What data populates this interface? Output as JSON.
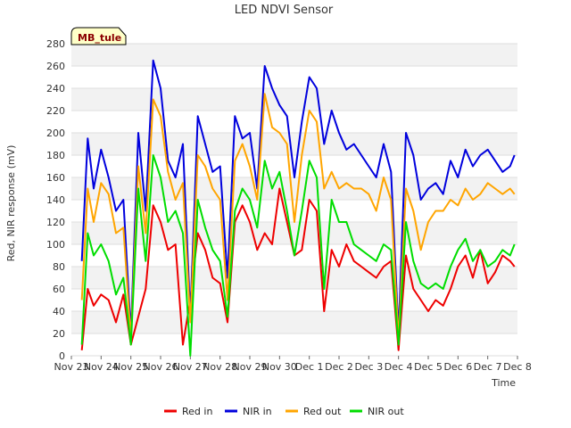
{
  "chart_data": {
    "type": "line",
    "title": "LED NDVI Sensor",
    "site_label": "MB_tule",
    "xlabel": "Time",
    "ylabel": "Red, NIR response (mV)",
    "ylim": [
      0,
      280
    ],
    "yticks": [
      0,
      20,
      40,
      60,
      80,
      100,
      120,
      140,
      160,
      180,
      200,
      220,
      240,
      260,
      280
    ],
    "xlim": [
      0,
      15
    ],
    "xticks": [
      {
        "x": 0,
        "label": "Nov 23"
      },
      {
        "x": 1,
        "label": "Nov 24"
      },
      {
        "x": 2,
        "label": "Nov 25"
      },
      {
        "x": 3,
        "label": "Nov 26"
      },
      {
        "x": 4,
        "label": "Nov 27"
      },
      {
        "x": 5,
        "label": "Nov 28"
      },
      {
        "x": 6,
        "label": "Nov 29"
      },
      {
        "x": 7,
        "label": "Nov 30"
      },
      {
        "x": 8,
        "label": "Dec 1"
      },
      {
        "x": 9,
        "label": "Dec 2"
      },
      {
        "x": 10,
        "label": "Dec 3"
      },
      {
        "x": 11,
        "label": "Dec 4"
      },
      {
        "x": 12,
        "label": "Dec 5"
      },
      {
        "x": 13,
        "label": "Dec 6"
      },
      {
        "x": 14,
        "label": "Dec 7"
      },
      {
        "x": 15,
        "label": "Dec 8"
      }
    ],
    "grid": true,
    "legend_position": "bottom",
    "x": [
      0.35,
      0.55,
      0.75,
      1.0,
      1.25,
      1.5,
      1.75,
      2.0,
      2.25,
      2.5,
      2.75,
      3.0,
      3.25,
      3.5,
      3.75,
      4.0,
      4.25,
      4.5,
      4.75,
      5.0,
      5.25,
      5.5,
      5.75,
      6.0,
      6.25,
      6.5,
      6.75,
      7.0,
      7.25,
      7.5,
      7.75,
      8.0,
      8.25,
      8.5,
      8.75,
      9.0,
      9.25,
      9.5,
      9.75,
      10.0,
      10.25,
      10.5,
      10.75,
      11.0,
      11.25,
      11.5,
      11.75,
      12.0,
      12.25,
      12.5,
      12.75,
      13.0,
      13.25,
      13.5,
      13.75,
      14.0,
      14.25,
      14.5,
      14.75,
      14.9
    ],
    "series": [
      {
        "name": "Red in",
        "color": "#ee0000",
        "values": [
          5,
          60,
          45,
          55,
          50,
          30,
          55,
          10,
          35,
          60,
          135,
          120,
          95,
          100,
          10,
          50,
          110,
          95,
          70,
          65,
          30,
          120,
          135,
          120,
          95,
          110,
          100,
          150,
          120,
          90,
          95,
          140,
          130,
          40,
          95,
          80,
          100,
          85,
          80,
          75,
          70,
          80,
          85,
          5,
          90,
          60,
          50,
          40,
          50,
          45,
          60,
          80,
          90,
          70,
          95,
          65,
          75,
          90,
          85,
          80
        ]
      },
      {
        "name": "NIR in",
        "color": "#0000dd",
        "values": [
          85,
          195,
          150,
          185,
          160,
          130,
          140,
          20,
          200,
          130,
          265,
          240,
          175,
          160,
          190,
          35,
          215,
          190,
          165,
          170,
          70,
          215,
          195,
          200,
          150,
          260,
          240,
          225,
          215,
          160,
          210,
          250,
          240,
          190,
          220,
          200,
          185,
          190,
          180,
          170,
          160,
          190,
          165,
          20,
          200,
          180,
          140,
          150,
          155,
          145,
          175,
          160,
          185,
          170,
          180,
          185,
          175,
          165,
          170,
          180
        ]
      },
      {
        "name": "Red out",
        "color": "#ffa500",
        "values": [
          50,
          150,
          120,
          155,
          145,
          110,
          115,
          15,
          170,
          110,
          230,
          215,
          165,
          140,
          155,
          30,
          180,
          170,
          150,
          140,
          50,
          175,
          190,
          170,
          140,
          235,
          205,
          200,
          190,
          120,
          180,
          220,
          210,
          150,
          165,
          150,
          155,
          150,
          150,
          145,
          130,
          160,
          140,
          15,
          150,
          130,
          95,
          120,
          130,
          130,
          140,
          135,
          150,
          140,
          145,
          155,
          150,
          145,
          150,
          145
        ]
      },
      {
        "name": "NIR out",
        "color": "#00dd00",
        "values": [
          10,
          110,
          90,
          100,
          85,
          55,
          70,
          10,
          150,
          85,
          180,
          160,
          120,
          130,
          110,
          0,
          140,
          115,
          95,
          85,
          35,
          130,
          150,
          140,
          115,
          175,
          150,
          165,
          130,
          90,
          130,
          175,
          160,
          60,
          140,
          120,
          120,
          100,
          95,
          90,
          85,
          100,
          95,
          10,
          120,
          85,
          65,
          60,
          65,
          60,
          80,
          95,
          105,
          85,
          95,
          80,
          85,
          95,
          90,
          100
        ]
      }
    ]
  }
}
